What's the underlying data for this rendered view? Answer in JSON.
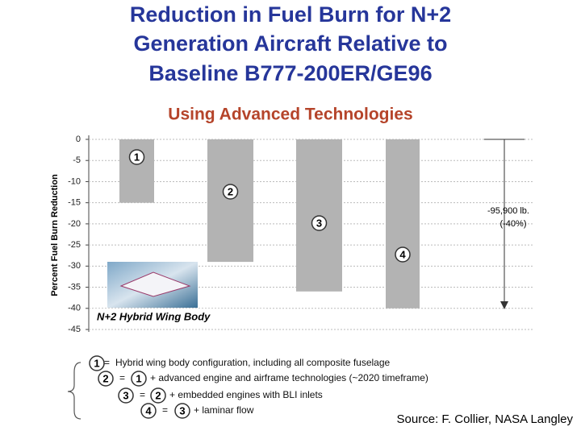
{
  "chart_data": {
    "type": "bar",
    "title": [
      "Reduction in Fuel Burn for N+2",
      "Generation Aircraft Relative to",
      "Baseline B777-200ER/GE96"
    ],
    "subtitle": "Using Advanced Technologies",
    "y_label": "Percent Fuel Burn Reduction",
    "categories": [
      "1",
      "2",
      "3",
      "4"
    ],
    "values": [
      -15,
      -29,
      -36,
      -40
    ],
    "color": "#b3b3b3",
    "ylim": [
      0,
      -45
    ],
    "yticks": [
      0,
      -5,
      -10,
      -15,
      -20,
      -25,
      -30,
      -35,
      -40,
      -45
    ],
    "grid": true,
    "annotation": [
      "-95,900 lb.",
      "(-40%)"
    ],
    "image_caption": "N+2 Hybrid Wing Body",
    "legend": [
      {
        "id": "1",
        "equals": "=",
        "text": "Hybrid wing body configuration, including all composite fuselage"
      },
      {
        "id": "2",
        "equals": "=",
        "ref": "1",
        "text": "+  advanced engine and airframe technologies (~2020 timeframe)"
      },
      {
        "id": "3",
        "equals": "=",
        "ref": "2",
        "text": "+ embedded engines with BLI inlets"
      },
      {
        "id": "4",
        "equals": "=",
        "ref": "3",
        "text": "+ laminar flow"
      }
    ],
    "source": "Source: F. Collier, NASA Langley"
  }
}
